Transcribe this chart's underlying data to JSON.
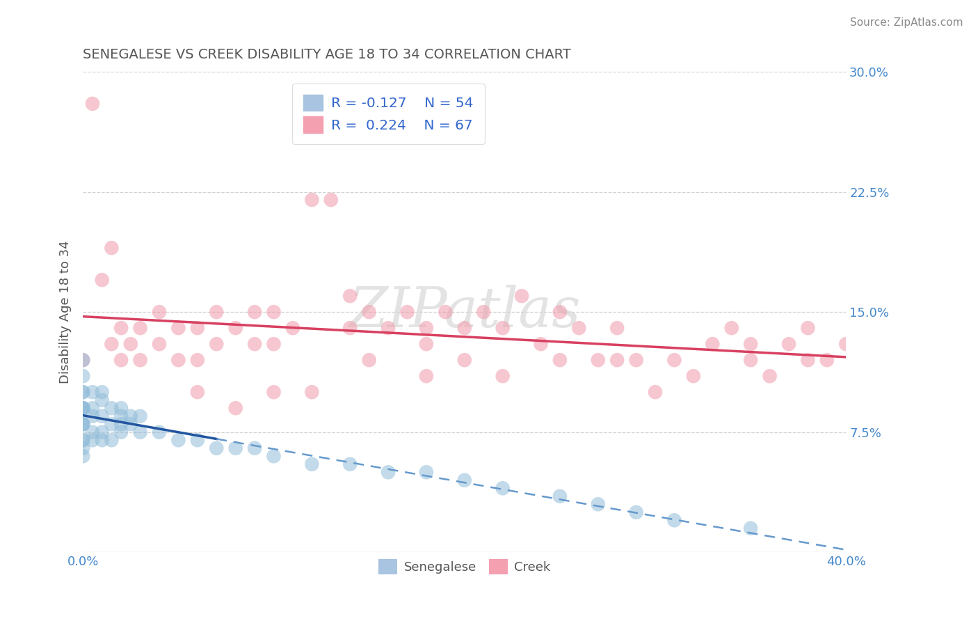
{
  "title": "SENEGALESE VS CREEK DISABILITY AGE 18 TO 34 CORRELATION CHART",
  "source_text": "Source: ZipAtlas.com",
  "ylabel": "Disability Age 18 to 34",
  "xlim": [
    0.0,
    0.4
  ],
  "ylim": [
    0.0,
    0.3
  ],
  "xticks": [
    0.0,
    0.1,
    0.2,
    0.3,
    0.4
  ],
  "xtick_labels": [
    "0.0%",
    "",
    "",
    "",
    "40.0%"
  ],
  "yticks": [
    0.0,
    0.075,
    0.15,
    0.225,
    0.3
  ],
  "ytick_labels_right": [
    "",
    "7.5%",
    "15.0%",
    "22.5%",
    "30.0%"
  ],
  "legend_entries": [
    {
      "label": "Senegalese",
      "R": -0.127,
      "N": 54,
      "patch_color": "#a8c4e0"
    },
    {
      "label": "Creek",
      "R": 0.224,
      "N": 67,
      "patch_color": "#f4a0b0"
    }
  ],
  "watermark": "ZIPatlas",
  "senegalese_x": [
    0.0,
    0.0,
    0.0,
    0.0,
    0.0,
    0.0,
    0.0,
    0.0,
    0.0,
    0.0,
    0.0,
    0.0,
    0.0,
    0.0,
    0.0,
    0.005,
    0.005,
    0.005,
    0.005,
    0.005,
    0.01,
    0.01,
    0.01,
    0.01,
    0.01,
    0.015,
    0.015,
    0.015,
    0.02,
    0.02,
    0.02,
    0.02,
    0.025,
    0.025,
    0.03,
    0.03,
    0.04,
    0.05,
    0.06,
    0.07,
    0.08,
    0.09,
    0.1,
    0.12,
    0.14,
    0.16,
    0.18,
    0.2,
    0.22,
    0.25,
    0.27,
    0.29,
    0.31,
    0.35
  ],
  "senegalese_y": [
    0.12,
    0.11,
    0.1,
    0.1,
    0.09,
    0.09,
    0.09,
    0.09,
    0.08,
    0.08,
    0.08,
    0.07,
    0.07,
    0.065,
    0.06,
    0.1,
    0.09,
    0.085,
    0.075,
    0.07,
    0.1,
    0.095,
    0.085,
    0.075,
    0.07,
    0.09,
    0.08,
    0.07,
    0.09,
    0.085,
    0.08,
    0.075,
    0.085,
    0.08,
    0.085,
    0.075,
    0.075,
    0.07,
    0.07,
    0.065,
    0.065,
    0.065,
    0.06,
    0.055,
    0.055,
    0.05,
    0.05,
    0.045,
    0.04,
    0.035,
    0.03,
    0.025,
    0.02,
    0.015
  ],
  "creek_x": [
    0.0,
    0.005,
    0.01,
    0.015,
    0.015,
    0.02,
    0.02,
    0.025,
    0.03,
    0.03,
    0.04,
    0.04,
    0.05,
    0.05,
    0.06,
    0.06,
    0.07,
    0.07,
    0.08,
    0.09,
    0.09,
    0.1,
    0.1,
    0.11,
    0.12,
    0.13,
    0.14,
    0.14,
    0.15,
    0.16,
    0.17,
    0.18,
    0.18,
    0.19,
    0.2,
    0.21,
    0.22,
    0.23,
    0.24,
    0.25,
    0.26,
    0.27,
    0.28,
    0.29,
    0.3,
    0.31,
    0.32,
    0.33,
    0.34,
    0.35,
    0.36,
    0.37,
    0.38,
    0.39,
    0.4,
    0.06,
    0.08,
    0.1,
    0.12,
    0.15,
    0.18,
    0.2,
    0.22,
    0.25,
    0.28,
    0.35,
    0.38
  ],
  "creek_y": [
    0.12,
    0.28,
    0.17,
    0.19,
    0.13,
    0.14,
    0.12,
    0.13,
    0.14,
    0.12,
    0.15,
    0.13,
    0.14,
    0.12,
    0.14,
    0.12,
    0.15,
    0.13,
    0.14,
    0.15,
    0.13,
    0.15,
    0.13,
    0.14,
    0.22,
    0.22,
    0.16,
    0.14,
    0.15,
    0.14,
    0.15,
    0.14,
    0.13,
    0.15,
    0.14,
    0.15,
    0.14,
    0.16,
    0.13,
    0.15,
    0.14,
    0.12,
    0.14,
    0.12,
    0.1,
    0.12,
    0.11,
    0.13,
    0.14,
    0.12,
    0.11,
    0.13,
    0.14,
    0.12,
    0.13,
    0.1,
    0.09,
    0.1,
    0.1,
    0.12,
    0.11,
    0.12,
    0.11,
    0.12,
    0.12,
    0.13,
    0.12
  ],
  "blue_dot_color": "#90bcd8",
  "pink_dot_color": "#f09aaa",
  "blue_solid_color": "#2255a0",
  "blue_dash_color": "#6699cc",
  "pink_line_color": "#d84060",
  "grid_color": "#cccccc",
  "background_color": "#ffffff",
  "title_color": "#555555",
  "tick_color": "#4488cc",
  "source_color": "#888888",
  "legend_text_color": "#3366cc"
}
